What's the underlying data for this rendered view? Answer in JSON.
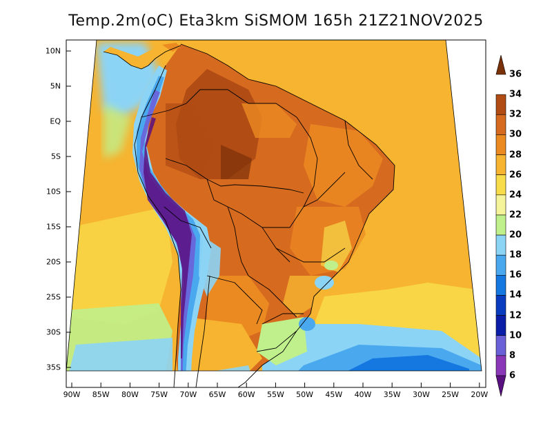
{
  "title": "Temp.2m(oC) Eta3km SiSMOM 165h 21Z21NOV2025",
  "map": {
    "lat_ticks": [
      "10N",
      "5N",
      "EQ",
      "5S",
      "10S",
      "15S",
      "20S",
      "25S",
      "30S",
      "35S"
    ],
    "lon_ticks": [
      "90W",
      "85W",
      "80W",
      "75W",
      "70W",
      "65W",
      "60W",
      "55W",
      "50W",
      "45W",
      "40W",
      "35W",
      "30W",
      "25W",
      "20W"
    ]
  },
  "colorbar": {
    "labels": [
      "6",
      "8",
      "10",
      "12",
      "14",
      "16",
      "18",
      "20",
      "22",
      "24",
      "26",
      "28",
      "30",
      "32",
      "34",
      "36"
    ],
    "colors": [
      "#5a1080",
      "#8a38b8",
      "#6a60d8",
      "#0a1ea8",
      "#0a3cc0",
      "#1478e0",
      "#4aa8ee",
      "#8cd4f6",
      "#c0f08c",
      "#f6f49a",
      "#f8dc4a",
      "#f6b430",
      "#ec8a22",
      "#d66a1e",
      "#b04c14",
      "#7a3008"
    ]
  }
}
